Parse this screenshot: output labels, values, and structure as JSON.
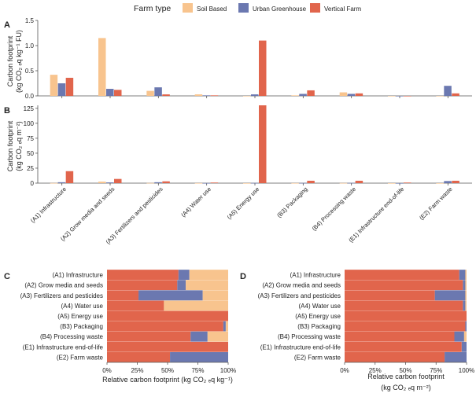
{
  "legend": {
    "title": "Farm type",
    "entries": [
      "Soil Based",
      "Urban Greenhouse",
      "Vertical Farm"
    ]
  },
  "colors": {
    "soil": "#F8C48E",
    "urban": "#6B78B0",
    "vertical": "#E1654C",
    "axis": "#555555",
    "text": "#222222"
  },
  "chart_data": [
    {
      "panel": "A",
      "type": "bar",
      "ylabel": "Carbon footprint (kg CO2 eq kg⁻¹ FU)",
      "ylim": [
        0,
        1.5
      ],
      "yticks": [
        "0.0",
        "0.5",
        "1.0",
        "1.5"
      ],
      "categories": [
        "(A1) Infrastructure",
        "(A2) Grow media and seeds",
        "(A3) Fertilizers and pesticides",
        "(A4) Water use",
        "(A5) Energy use",
        "(B3) Packaging",
        "(B4) Processing waste",
        "(E1) Infrastructure end-of-life",
        "(E2) Farm waste"
      ],
      "series": [
        {
          "name": "Soil Based",
          "values": [
            0.42,
            1.15,
            0.1,
            0.03,
            0.0,
            0.01,
            0.07,
            0.0,
            0.0
          ]
        },
        {
          "name": "Urban Greenhouse",
          "values": [
            0.25,
            0.14,
            0.17,
            0.01,
            0.03,
            0.04,
            0.04,
            0.0,
            0.2
          ]
        },
        {
          "name": "Vertical Farm",
          "values": [
            0.36,
            0.12,
            0.03,
            0.01,
            1.1,
            0.11,
            0.05,
            0.0,
            0.05
          ]
        }
      ]
    },
    {
      "panel": "B",
      "type": "bar",
      "ylabel": "Carbon footprint (kg CO2 eq m⁻²)",
      "ylim": [
        0,
        130
      ],
      "yticks": [
        "0",
        "25",
        "50",
        "75",
        "100",
        "125"
      ],
      "categories": [
        "(A1) Infrastructure",
        "(A2) Grow media and seeds",
        "(A3) Fertilizers and pesticides",
        "(A4) Water use",
        "(A5) Energy use",
        "(B3) Packaging",
        "(B4) Processing waste",
        "(E1) Infrastructure end-of-life",
        "(E2) Farm waste"
      ],
      "series": [
        {
          "name": "Soil Based",
          "values": [
            0.2,
            2.5,
            0.3,
            0.1,
            0.0,
            0.1,
            0.2,
            0.0,
            0.0
          ]
        },
        {
          "name": "Urban Greenhouse",
          "values": [
            1.5,
            1.2,
            1.5,
            0.1,
            0.3,
            0.3,
            0.4,
            0.0,
            3.5
          ]
        },
        {
          "name": "Vertical Farm",
          "values": [
            20,
            7,
            3,
            1,
            130,
            4,
            4,
            1,
            4
          ]
        }
      ]
    },
    {
      "panel": "C",
      "type": "bar",
      "orientation": "horizontal-stacked-percent",
      "xlabel": "Relative carbon footprint (kg CO2 eq kg⁻¹)",
      "xticks": [
        "0%",
        "25%",
        "50%",
        "75%",
        "100%"
      ],
      "categories": [
        "(A1) Infrastructure",
        "(A2) Grow media and seeds",
        "(A3) Fertilizers and pesticides",
        "(A4) Water use",
        "(A5) Energy use",
        "(B3) Packaging",
        "(B4) Processing waste",
        "(E1) Infrastructure end-of-life",
        "(E2) Farm waste"
      ],
      "series": [
        {
          "name": "Vertical Farm",
          "values": [
            59,
            58,
            26,
            47,
            100,
            96,
            69,
            100,
            52
          ]
        },
        {
          "name": "Urban Greenhouse",
          "values": [
            9,
            7,
            53,
            0,
            0,
            2,
            14,
            0,
            48
          ]
        },
        {
          "name": "Soil Based",
          "values": [
            32,
            35,
            21,
            53,
            0,
            2,
            17,
            0,
            0
          ]
        }
      ]
    },
    {
      "panel": "D",
      "type": "bar",
      "orientation": "horizontal-stacked-percent",
      "xlabel": "Relative carbon footprint (kg CO2 eq m⁻²)",
      "xticks": [
        "0%",
        "25%",
        "50%",
        "75%",
        "100%"
      ],
      "categories": [
        "(A1) Infrastructure",
        "(A2) Grow media and seeds",
        "(A3) Fertilizers and pesticides",
        "(A4) Water use",
        "(A5) Energy use",
        "(B3) Packaging",
        "(B4) Processing waste",
        "(E1) Infrastructure end-of-life",
        "(E2) Farm waste"
      ],
      "series": [
        {
          "name": "Vertical Farm",
          "values": [
            94,
            97,
            74,
            97,
            100,
            99,
            90,
            96,
            82
          ]
        },
        {
          "name": "Urban Greenhouse",
          "values": [
            5,
            2,
            25,
            2,
            0,
            1,
            8,
            4,
            18
          ]
        },
        {
          "name": "Soil Based",
          "values": [
            1,
            1,
            1,
            1,
            0,
            0,
            2,
            0,
            0
          ]
        }
      ]
    }
  ],
  "panel_letters": {
    "A": "A",
    "B": "B",
    "C": "C",
    "D": "D"
  },
  "text": {
    "ylabel_line1": "Carbon footprint",
    "ylabel_A_line2": "(kg CO₂ ₑq kg⁻¹ FU)",
    "ylabel_B_line2": "(kg CO₂ ₑq m⁻²)",
    "xlabel_C": "Relative carbon footprint (kg CO₂ ₑq kg⁻¹)",
    "xlabel_D_line1": "Relative carbon footprint",
    "xlabel_D_line2": "(kg CO₂ ₑq m⁻²)"
  }
}
